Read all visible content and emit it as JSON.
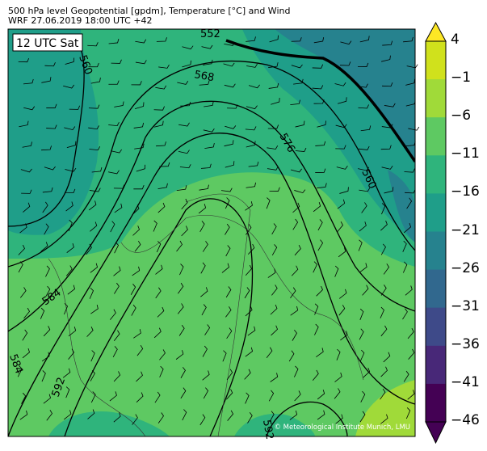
{
  "header": {
    "title_line1": "500 hPa level Geopotential [gpdm], Temperature [°C] and Wind",
    "title_line2": "WRF 27.06.2019 18:00 UTC +42"
  },
  "map": {
    "time_label": "12 UTC Sat",
    "copyright": "© Meteorological Institute Munich, LMU",
    "contour_labels": [
      "552",
      "560",
      "568",
      "576",
      "584",
      "584",
      "592",
      "592",
      "560"
    ]
  },
  "colorbar": {
    "ticks": [
      "4",
      "−1",
      "−6",
      "−11",
      "−16",
      "−21",
      "−26",
      "−31",
      "−36",
      "−41",
      "−46"
    ],
    "colors": [
      "#fde725",
      "#d0e11c",
      "#a0da39",
      "#5ec962",
      "#2fb47c",
      "#1f9e89",
      "#26828e",
      "#31688e",
      "#3e4a89",
      "#482878",
      "#440154"
    ],
    "extend_top_color": "#fde725",
    "extend_bottom_color": "#440154"
  }
}
